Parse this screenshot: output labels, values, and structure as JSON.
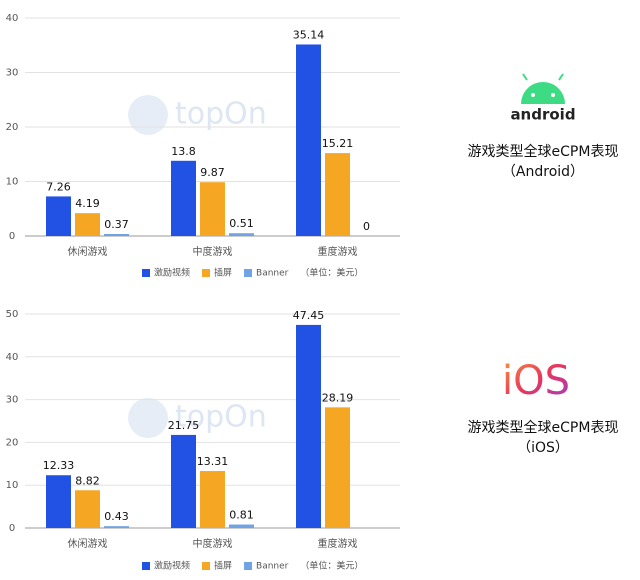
{
  "chart_data": [
    {
      "type": "bar",
      "title": "游戏类型全球eCPM表现",
      "subtitle": "（Android）",
      "logo": "android",
      "watermark": "topOn",
      "categories": [
        "休闲游戏",
        "中度游戏",
        "重度游戏"
      ],
      "series": [
        {
          "name": "激励视频",
          "color": "#2152e3",
          "values": [
            7.26,
            13.8,
            35.14
          ]
        },
        {
          "name": "插屏",
          "color": "#f5a623",
          "values": [
            4.19,
            9.87,
            15.21
          ]
        },
        {
          "name": "Banner",
          "color": "#6fa3e6",
          "values": [
            0.37,
            0.51,
            0
          ]
        }
      ],
      "legend_note": "（单位：美元）",
      "ylim": [
        0,
        40
      ],
      "yticks": [
        0,
        10,
        20,
        30,
        40
      ],
      "grid": true
    },
    {
      "type": "bar",
      "title": "游戏类型全球eCPM表现",
      "subtitle": "（iOS）",
      "logo": "iOS",
      "watermark": "topOn",
      "categories": [
        "休闲游戏",
        "中度游戏",
        "重度游戏"
      ],
      "series": [
        {
          "name": "激励视频",
          "color": "#2152e3",
          "values": [
            12.33,
            21.75,
            47.45
          ]
        },
        {
          "name": "插屏",
          "color": "#f5a623",
          "values": [
            8.82,
            13.31,
            28.19
          ]
        },
        {
          "name": "Banner",
          "color": "#6fa3e6",
          "values": [
            0.43,
            0.81,
            null
          ]
        }
      ],
      "legend_note": "（单位：美元）",
      "ylim": [
        0,
        50
      ],
      "yticks": [
        0,
        10,
        20,
        30,
        40,
        50
      ],
      "grid": true
    }
  ]
}
